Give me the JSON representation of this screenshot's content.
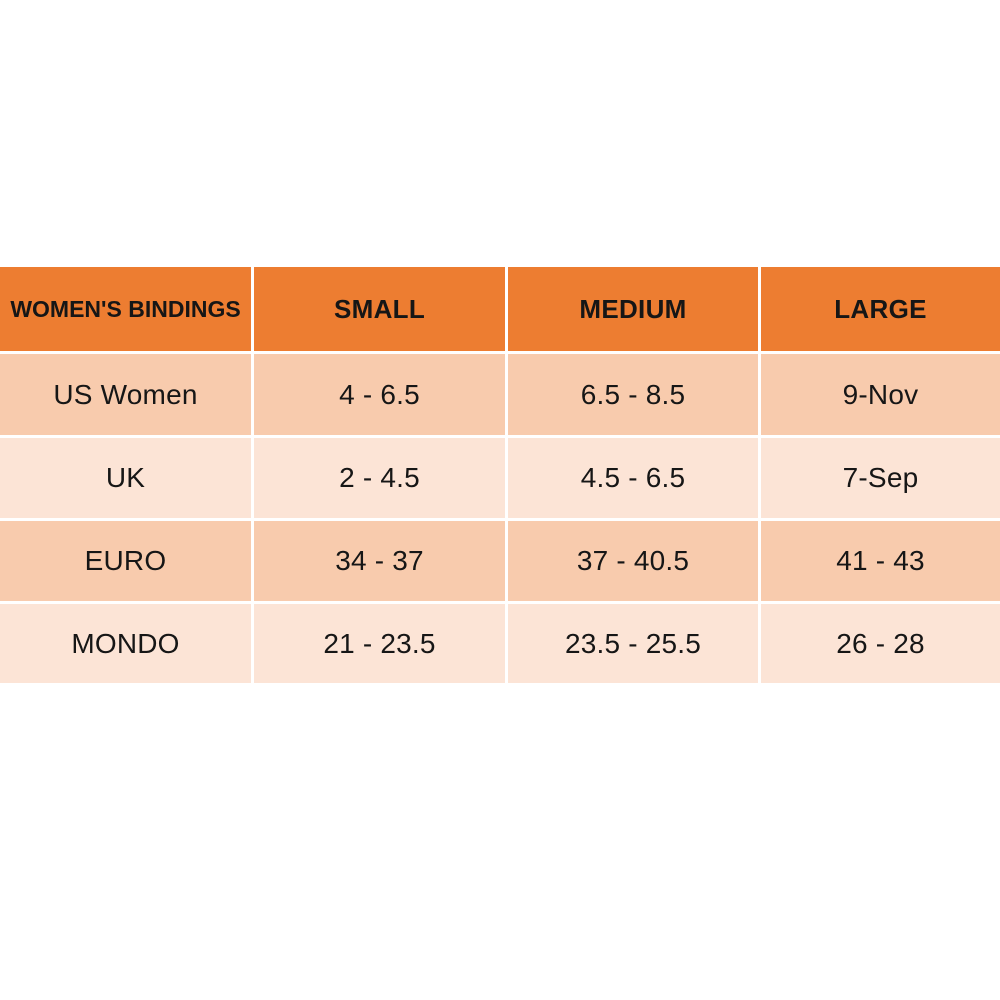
{
  "page": {
    "background": "#FFFFFF"
  },
  "colors": {
    "header-bg": "#ED7D31",
    "band-dark": "#F8CBAD",
    "band-light": "#FCE4D6",
    "grid-line": "#FFFFFF",
    "text": "#161616"
  },
  "chart_data": {
    "type": "table",
    "title": "WOMEN'S BINDINGS",
    "columns": [
      "WOMEN'S BINDINGS",
      "SMALL",
      "MEDIUM",
      "LARGE"
    ],
    "rows": [
      [
        "US Women",
        "4 - 6.5",
        "6.5 - 8.5",
        "9-Nov"
      ],
      [
        "UK",
        "2 - 4.5",
        "4.5 - 6.5",
        "7-Sep"
      ],
      [
        "EURO",
        "34 - 37",
        "37 - 40.5",
        "41 - 43"
      ],
      [
        "MONDO",
        "21 - 23.5",
        "23.5 - 25.5",
        "26 - 28"
      ]
    ],
    "layout": {
      "banded_rows": true,
      "band_order": [
        "dark",
        "light",
        "dark",
        "light"
      ],
      "header_fill": "#ED7D31",
      "band_fills": [
        "#F8CBAD",
        "#FCE4D6"
      ],
      "grid_lines": "white",
      "text_align": "center"
    }
  }
}
